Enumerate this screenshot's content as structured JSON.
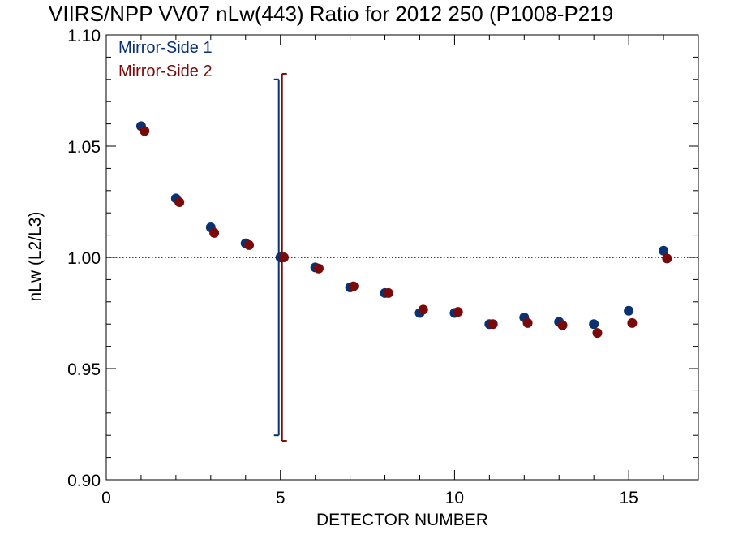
{
  "chart_data": {
    "type": "scatter",
    "title": "VIIRS/NPP VV07 nLw(443) Ratio for 2012 250 (P1008-P219",
    "xlabel": "DETECTOR NUMBER",
    "ylabel": "nLw (L2/L3)",
    "xlim": [
      0,
      17
    ],
    "ylim": [
      0.9,
      1.1
    ],
    "xticks": [
      "0",
      "5",
      "10",
      "15"
    ],
    "yticks": [
      "0.90",
      "0.95",
      "1.00",
      "1.05",
      "1.10"
    ],
    "reference_line": 1.0,
    "legend_position": "top-left",
    "series": [
      {
        "name": "Mirror-Side 1",
        "color": "#0a3272",
        "x": [
          1,
          2,
          3,
          4,
          5,
          6,
          7,
          8,
          9,
          10,
          11,
          12,
          13,
          14,
          15,
          16
        ],
        "y": [
          1.059,
          1.0265,
          1.0135,
          1.0063,
          1.0,
          0.9955,
          0.9865,
          0.984,
          0.975,
          0.975,
          0.97,
          0.973,
          0.971,
          0.97,
          0.976,
          1.003
        ],
        "error_bar": {
          "x": 5,
          "low": 0.92,
          "high": 1.08
        }
      },
      {
        "name": "Mirror-Side 2",
        "color": "#7a0a0a",
        "x": [
          1,
          2,
          3,
          4,
          5,
          6,
          7,
          8,
          9,
          10,
          11,
          12,
          13,
          14,
          15,
          16
        ],
        "y": [
          1.0568,
          1.0248,
          1.011,
          1.0055,
          1.0,
          0.995,
          0.987,
          0.984,
          0.9765,
          0.9755,
          0.97,
          0.9705,
          0.9695,
          0.966,
          0.9705,
          0.9995
        ],
        "error_bar": {
          "x": 5,
          "low": 0.9175,
          "high": 1.0825
        }
      }
    ]
  }
}
